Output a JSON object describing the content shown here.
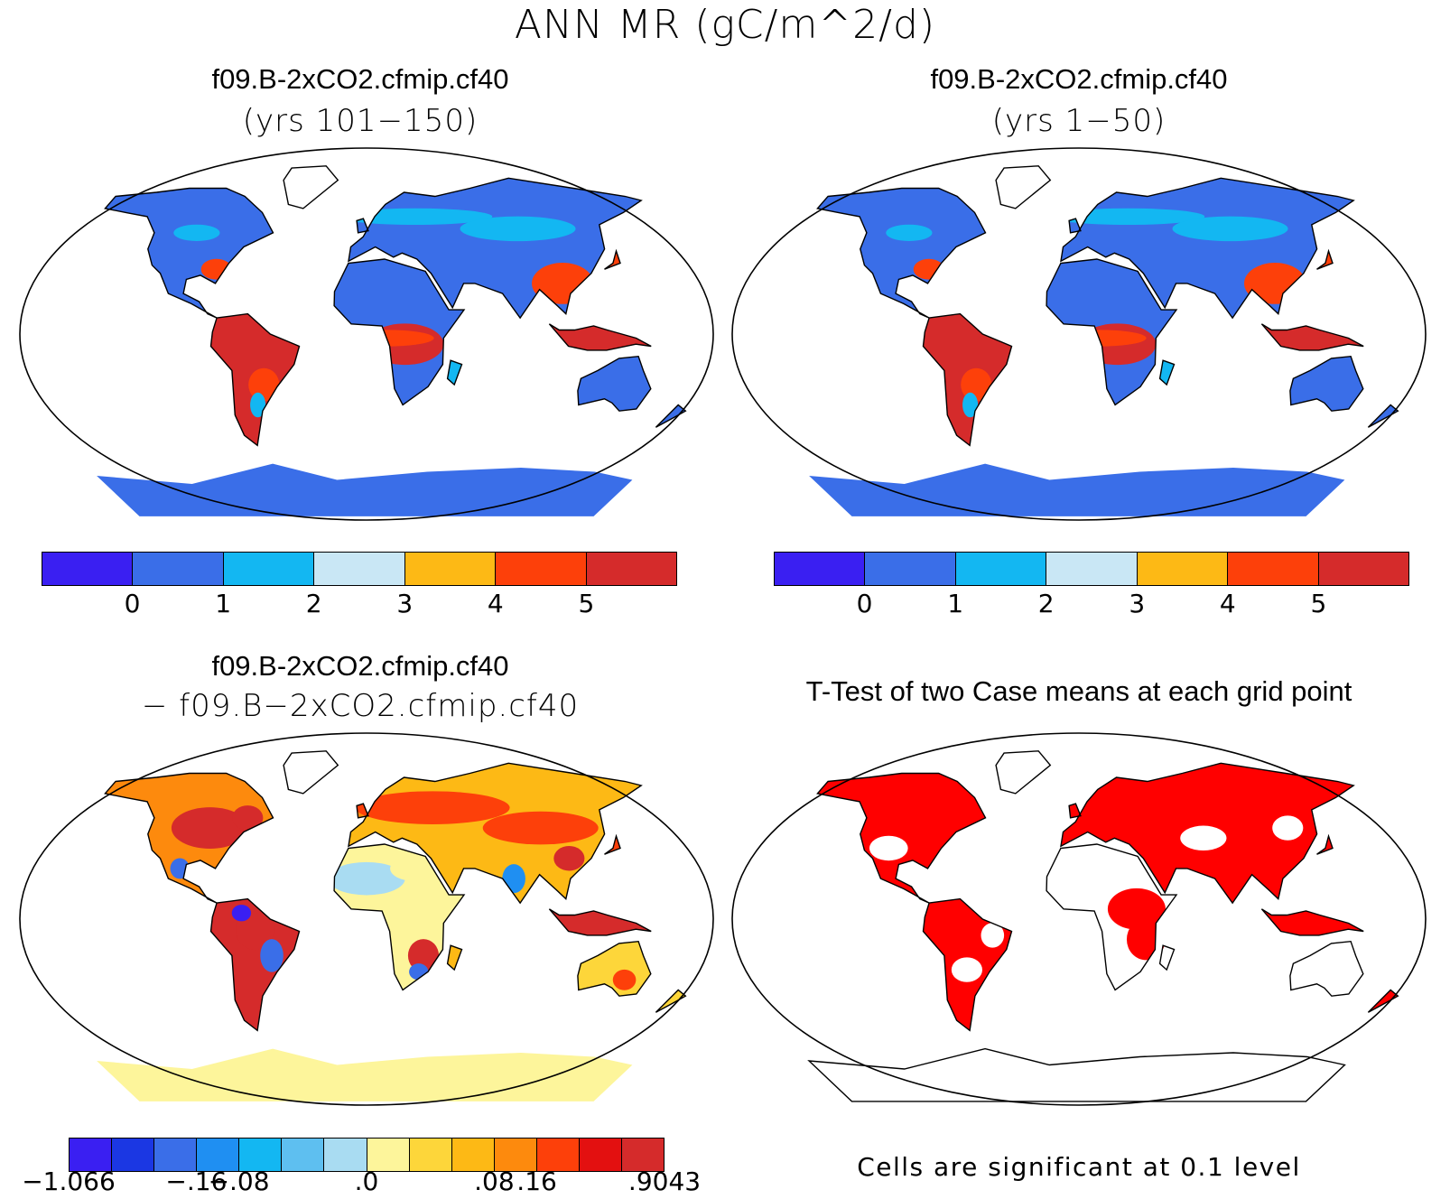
{
  "title": "ANN MR (gC/m^2/d)",
  "panels": [
    {
      "title": "f09.B-2xCO2.cfmip.cf40",
      "subtitle": "(yrs 101−150)",
      "colorbar": {
        "colors": [
          "#3a1ff2",
          "#3a6ee8",
          "#13b7f2",
          "#c9e7f5",
          "#fdb915",
          "#fd400a",
          "#d52b2b"
        ],
        "ticks": [
          "0",
          "1",
          "2",
          "3",
          "4",
          "5"
        ]
      }
    },
    {
      "title": "f09.B-2xCO2.cfmip.cf40",
      "subtitle": "(yrs 1−50)",
      "colorbar": {
        "colors": [
          "#3a1ff2",
          "#3a6ee8",
          "#13b7f2",
          "#c9e7f5",
          "#fdb915",
          "#fd400a",
          "#d52b2b"
        ],
        "ticks": [
          "0",
          "1",
          "2",
          "3",
          "4",
          "5"
        ]
      }
    },
    {
      "title": "f09.B-2xCO2.cfmip.cf40",
      "subtitle": "− f09.B−2xCO2.cfmip.cf40",
      "colorbar": {
        "colors": [
          "#3a1ff2",
          "#1b37e3",
          "#3a6ee8",
          "#1f8ff2",
          "#13b7f2",
          "#5ebff0",
          "#a9dcf2",
          "#fdf59b",
          "#fdd63a",
          "#fdb915",
          "#fd8a0d",
          "#fd400a",
          "#e31010",
          "#d52b2b"
        ],
        "ticks": [
          "−1.066",
          "−.16",
          "−.08",
          ".0",
          ".08",
          ".16",
          ".9043"
        ]
      }
    },
    {
      "title": "T-Test of two Case means at each grid point",
      "note": "Cells are significant at 0.1 level",
      "significant_color": "#ff0000"
    }
  ]
}
